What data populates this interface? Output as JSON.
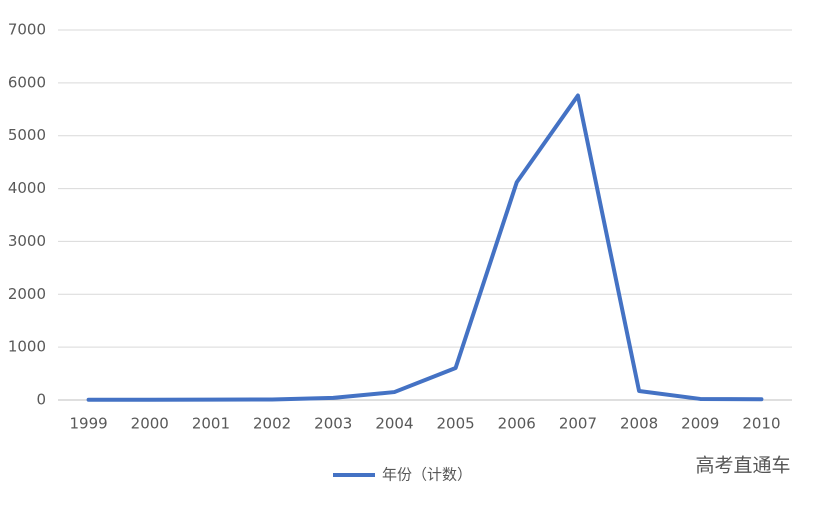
{
  "chart_data": {
    "type": "line",
    "categories": [
      "1999",
      "2000",
      "2001",
      "2002",
      "2003",
      "2004",
      "2005",
      "2006",
      "2007",
      "2008",
      "2009",
      "2010"
    ],
    "series": [
      {
        "name": "年份（计数）",
        "color": "#4472c4",
        "values": [
          5,
          5,
          8,
          10,
          40,
          150,
          605,
          4120,
          5760,
          170,
          20,
          15
        ]
      }
    ],
    "ylim": [
      0,
      7000
    ],
    "yticks": [
      0,
      1000,
      2000,
      3000,
      4000,
      5000,
      6000,
      7000
    ],
    "grid": true,
    "legend": "bottom",
    "watermark": "高考直通车"
  }
}
